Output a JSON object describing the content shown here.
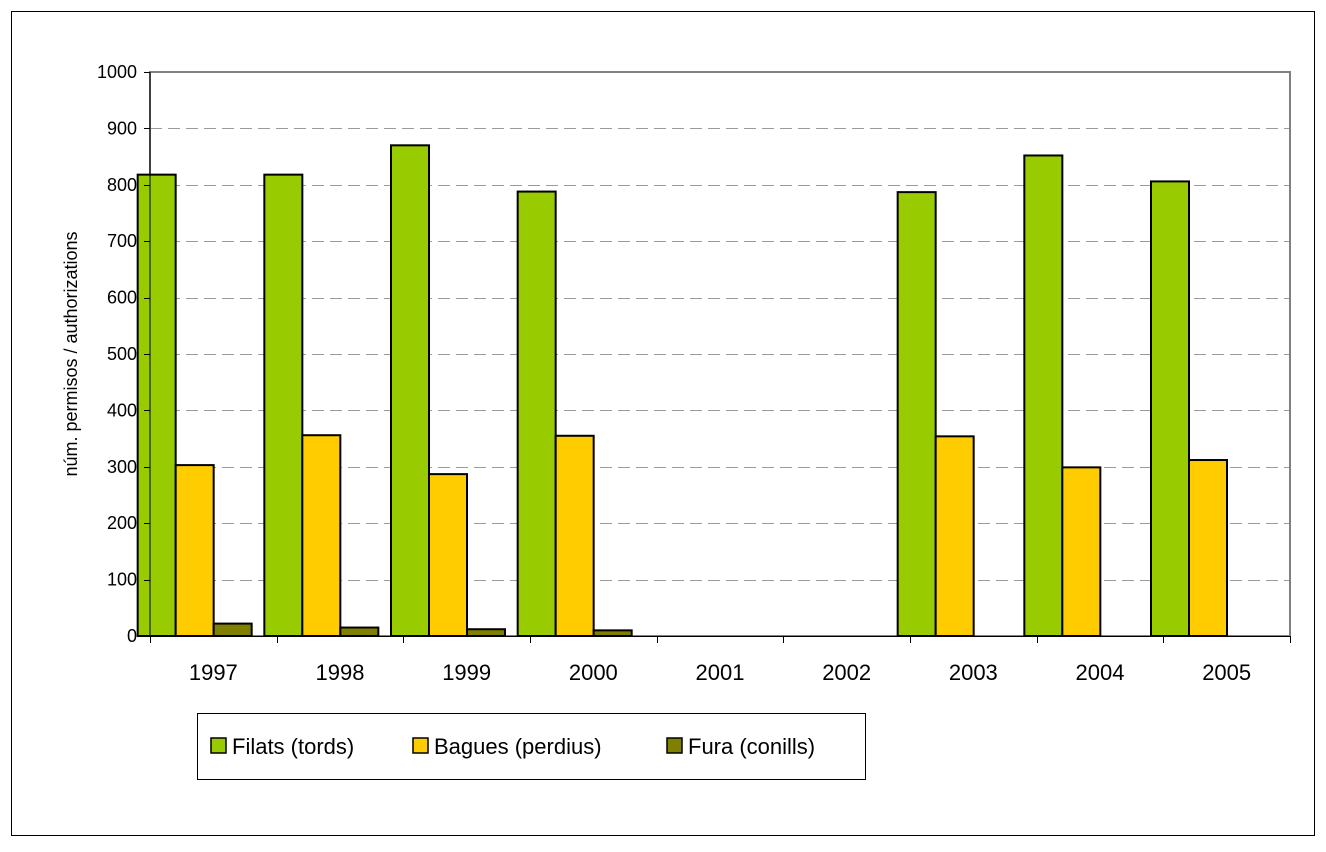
{
  "chart_data": {
    "type": "bar",
    "title": "",
    "xlabel": "",
    "ylabel": "núm. permisos / authorizations",
    "ylim": [
      0,
      1000
    ],
    "ytick_step": 100,
    "yticks": [
      "0",
      "100",
      "200",
      "300",
      "400",
      "500",
      "600",
      "700",
      "800",
      "900",
      "1000"
    ],
    "grid": "horizontal dashed",
    "legend_position": "bottom-left",
    "categories": [
      "1997",
      "1998",
      "1999",
      "2000",
      "2001",
      "2002",
      "2003",
      "2004",
      "2005"
    ],
    "series": [
      {
        "name": "Filats (tords)",
        "color": "#99cc00",
        "values": [
          818,
          818,
          870,
          788,
          null,
          null,
          787,
          852,
          806
        ]
      },
      {
        "name": "Bagues (perdius)",
        "color": "#ffcc00",
        "values": [
          303,
          356,
          287,
          355,
          null,
          null,
          354,
          299,
          312
        ]
      },
      {
        "name": "Fura (conills)",
        "color": "#808000",
        "values": [
          22,
          15,
          12,
          10,
          null,
          null,
          null,
          null,
          null
        ]
      }
    ]
  }
}
